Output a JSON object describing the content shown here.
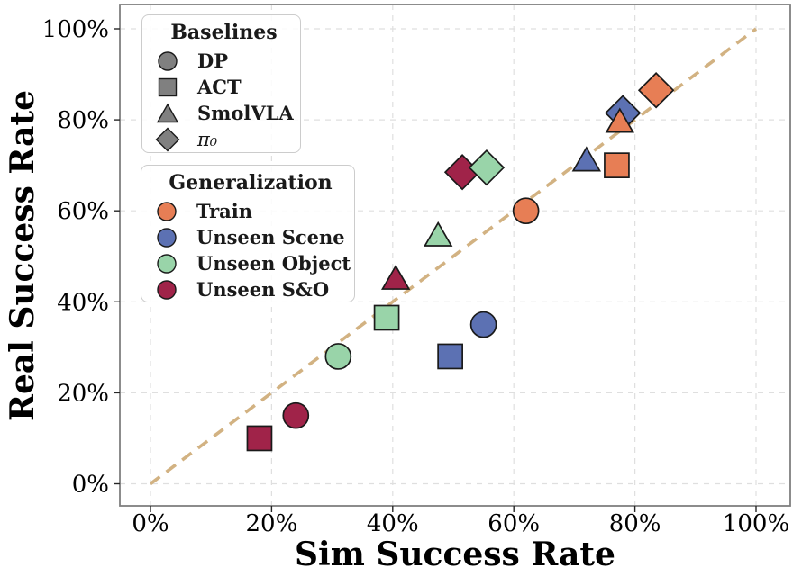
{
  "chart_data": {
    "type": "scatter",
    "xlabel": "Sim Success Rate",
    "ylabel": "Real Success Rate",
    "xlim": [
      0,
      100
    ],
    "ylim": [
      0,
      100
    ],
    "grid": true,
    "tick_values": [
      0,
      20,
      40,
      60,
      80,
      100
    ],
    "x_tick_labels": [
      "0%",
      "20%",
      "40%",
      "60%",
      "80%",
      "100%"
    ],
    "y_tick_labels": [
      "0%",
      "20%",
      "40%",
      "60%",
      "80%",
      "100%"
    ],
    "legend_baselines_title": "Baselines",
    "legend_generalization_title": "Generalization",
    "legend_position": "upper left",
    "identity_line": {
      "from": [
        0,
        0
      ],
      "to": [
        100,
        100
      ],
      "style": "dashed"
    },
    "baselines": [
      {
        "key": "dp",
        "name": "DP",
        "marker": "circle"
      },
      {
        "key": "act",
        "name": "ACT",
        "marker": "square"
      },
      {
        "key": "smolvla",
        "name": "SmolVLA",
        "marker": "triangle"
      },
      {
        "key": "pi0",
        "name": "π₀",
        "marker": "diamond"
      }
    ],
    "generalizations": [
      {
        "key": "train",
        "name": "Train",
        "color": "#E77E55"
      },
      {
        "key": "unseen-scene",
        "name": "Unseen Scene",
        "color": "#5C71B3"
      },
      {
        "key": "unseen-object",
        "name": "Unseen Object",
        "color": "#99D4A9"
      },
      {
        "key": "unseen-so",
        "name": "Unseen S&O",
        "color": "#A02349"
      }
    ],
    "draw_order": [
      "unseen-so",
      "unseen-object",
      "unseen-scene",
      "train"
    ],
    "points": [
      {
        "baseline": "dp",
        "generalization": "train",
        "sim": 62,
        "real": 60
      },
      {
        "baseline": "dp",
        "generalization": "unseen-scene",
        "sim": 55,
        "real": 35
      },
      {
        "baseline": "dp",
        "generalization": "unseen-object",
        "sim": 31,
        "real": 28
      },
      {
        "baseline": "dp",
        "generalization": "unseen-so",
        "sim": 24,
        "real": 15
      },
      {
        "baseline": "act",
        "generalization": "train",
        "sim": 77,
        "real": 70
      },
      {
        "baseline": "act",
        "generalization": "unseen-scene",
        "sim": 49.5,
        "real": 28
      },
      {
        "baseline": "act",
        "generalization": "unseen-object",
        "sim": 39,
        "real": 36.5
      },
      {
        "baseline": "act",
        "generalization": "unseen-so",
        "sim": 18,
        "real": 10
      },
      {
        "baseline": "smolvla",
        "generalization": "train",
        "sim": 77.5,
        "real": 79
      },
      {
        "baseline": "smolvla",
        "generalization": "unseen-scene",
        "sim": 72,
        "real": 70.5
      },
      {
        "baseline": "smolvla",
        "generalization": "unseen-object",
        "sim": 47.5,
        "real": 54
      },
      {
        "baseline": "smolvla",
        "generalization": "unseen-so",
        "sim": 40.5,
        "real": 44.5
      },
      {
        "baseline": "pi0",
        "generalization": "train",
        "sim": 83.5,
        "real": 86.5
      },
      {
        "baseline": "pi0",
        "generalization": "unseen-scene",
        "sim": 78,
        "real": 81.5
      },
      {
        "baseline": "pi0",
        "generalization": "unseen-object",
        "sim": 55.5,
        "real": 69.5
      },
      {
        "baseline": "pi0",
        "generalization": "unseen-so",
        "sim": 51.5,
        "real": 68.5
      }
    ],
    "colors": {
      "legend_gray": "#808080",
      "marker_edge": "#1a1a1a",
      "diagonal": "#D2B282",
      "grid": "#DFDFDF",
      "spine": "#7F7F7F",
      "tick": "#262626",
      "text": "#000000"
    }
  }
}
